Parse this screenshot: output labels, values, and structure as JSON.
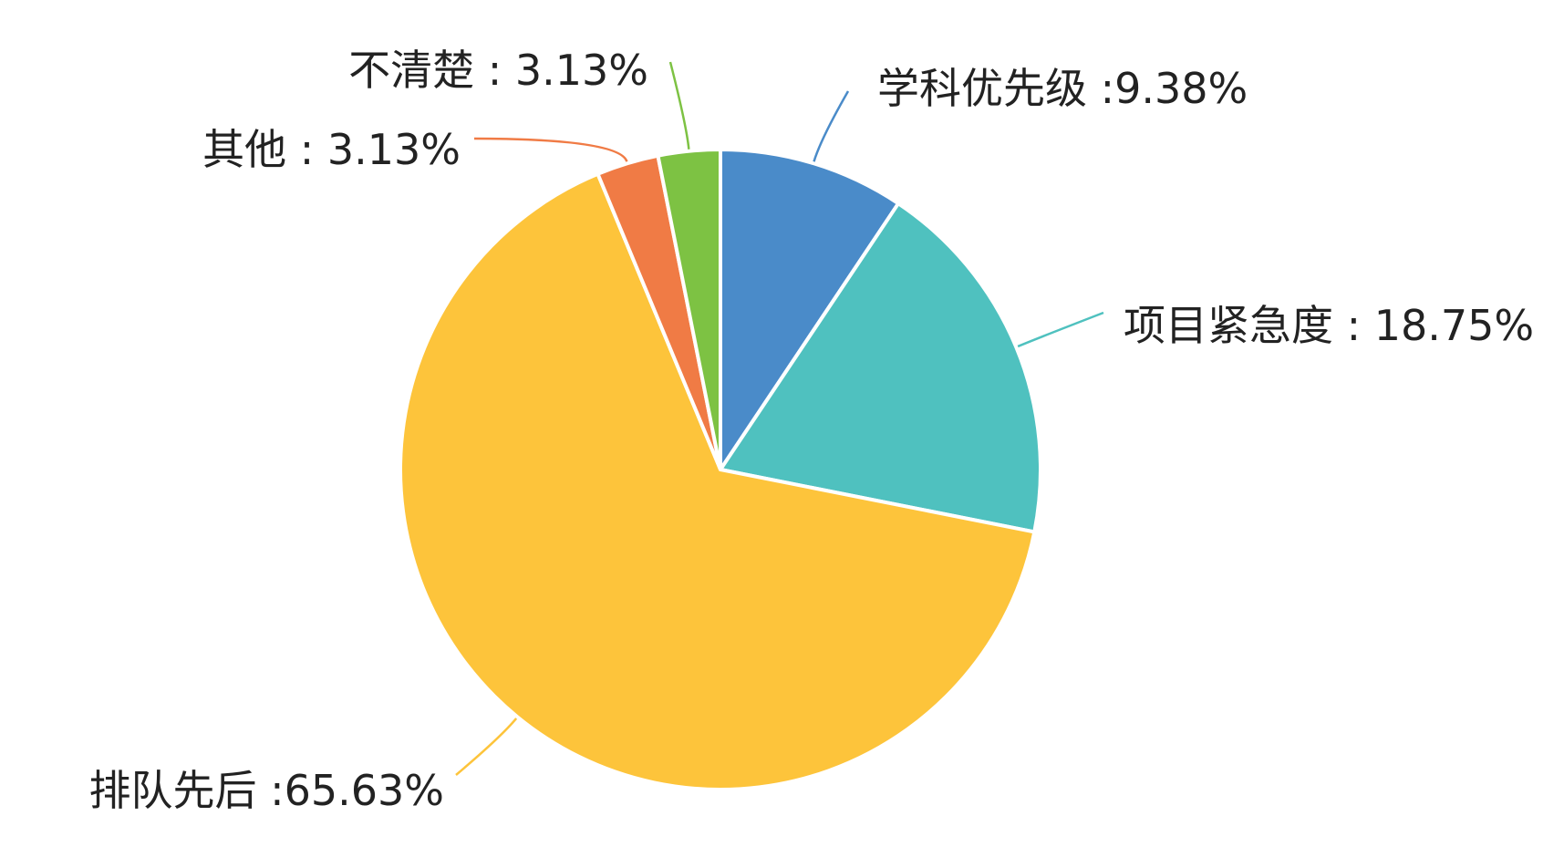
{
  "chart_data": {
    "type": "pie",
    "title": "",
    "start_angle_deg": 0,
    "direction": "clockwise",
    "slices": [
      {
        "name": "学科优先级",
        "value": 9.38,
        "label": "学科优先级 :9.38%",
        "color": "#4A8BC9"
      },
      {
        "name": "项目紧急度",
        "value": 18.75,
        "label": "项目紧急度 : 18.75%",
        "color": "#4FC1BF"
      },
      {
        "name": "排队先后",
        "value": 65.63,
        "label": "排队先后 :65.63%",
        "color": "#FDC43B"
      },
      {
        "name": "其他",
        "value": 3.13,
        "label": "其他 : 3.13%",
        "color": "#F07B45"
      },
      {
        "name": "不清楚",
        "value": 3.13,
        "label": "不清楚 : 3.13%",
        "color": "#7DC243"
      }
    ]
  }
}
